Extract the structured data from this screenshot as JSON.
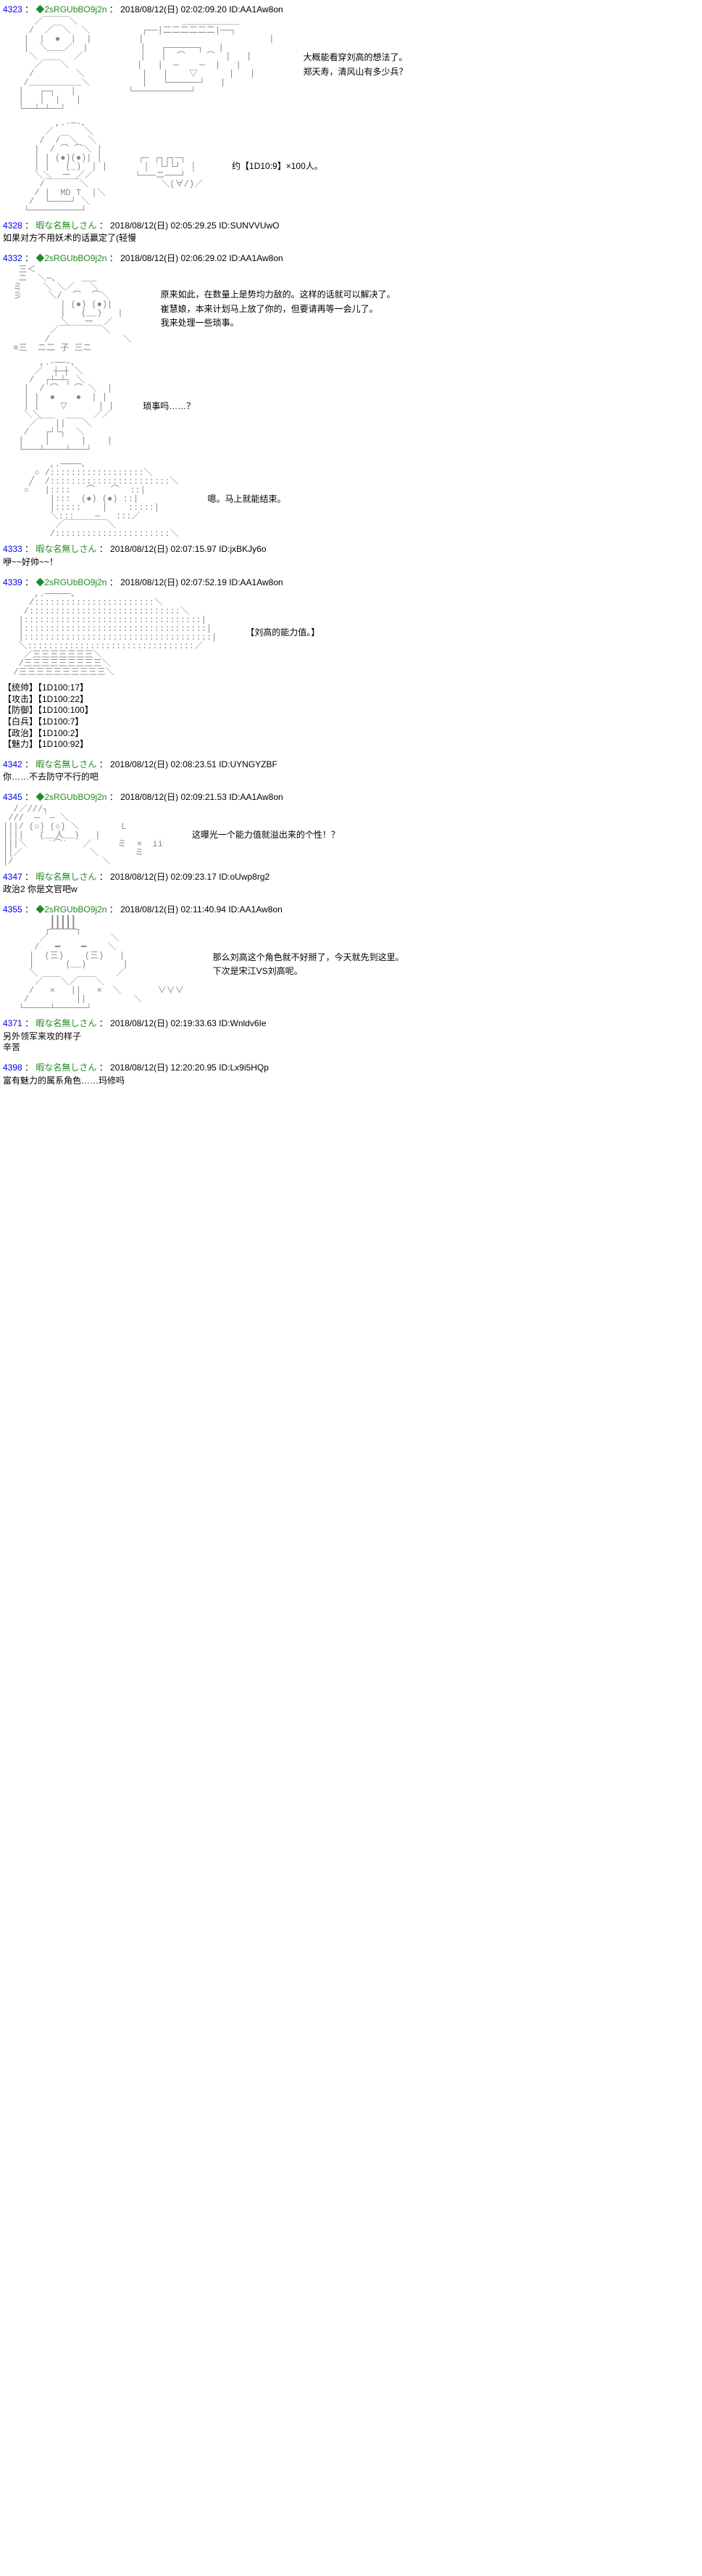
{
  "posts": [
    {
      "num": "4323",
      "trip": "◆2sRGUbBO9j2n",
      "date": "2018/08/12(日) 02:02:09.20",
      "id": "AA1Aw8on",
      "is_trip": true,
      "aa_key": "aa1",
      "side_lines": [
        "大概能看穿刘高的想法了。",
        "郑天寿，清风山有多少兵？"
      ]
    },
    {
      "aa_key": "aa2",
      "side_lines": [
        "约【1D10:9】×100人。"
      ]
    },
    {
      "num": "4328",
      "name": "暇な名無しさん",
      "date": "2018/08/12(日) 02:05:29.25",
      "id": "SUNVVUwO",
      "is_trip": false,
      "below_lines": [
        "如果对方不用妖术的话赢定了(轻慢"
      ]
    },
    {
      "num": "4332",
      "trip": "◆2sRGUbBO9j2n",
      "date": "2018/08/12(日) 02:06:29.02",
      "id": "AA1Aw8on",
      "is_trip": true,
      "aa_key": "aa3",
      "side_lines": [
        "原来如此，在数量上是势均力敌的。这样的话就可以解决了。",
        "崔慧娘，本来计划马上放了你的，但要请再等一会儿了。",
        "我来处理一些琐事。"
      ]
    },
    {
      "aa_key": "aa4",
      "side_lines": [
        "琐事吗……？"
      ]
    },
    {
      "aa_key": "aa5",
      "side_lines": [
        "嗯。马上就能结束。"
      ]
    },
    {
      "num": "4333",
      "name": "暇な名無しさん",
      "date": "2018/08/12(日) 02:07:15.97",
      "id": "jxBKJy6o",
      "is_trip": false,
      "below_lines": [
        "咿~~好帅~~！"
      ]
    },
    {
      "num": "4339",
      "trip": "◆2sRGUbBO9j2n",
      "date": "2018/08/12(日) 02:07:52.19",
      "id": "AA1Aw8on",
      "is_trip": true,
      "aa_key": "aa6",
      "side_lines": [
        "【刘高的能力值。】"
      ],
      "below_lines": [
        "【统帅】【1D100:17】",
        "【攻击】【1D100:22】",
        "【防御】【1D100:100】",
        "【白兵】【1D100:7】",
        "【政治】【1D100:2】",
        "【魅力】【1D100:92】"
      ]
    },
    {
      "num": "4342",
      "name": "暇な名無しさん",
      "date": "2018/08/12(日) 02:08:23.51",
      "id": "UYNGYZBF",
      "is_trip": false,
      "below_lines": [
        "你……不去防守不行的吧"
      ]
    },
    {
      "num": "4345",
      "trip": "◆2sRGUbBO9j2n",
      "date": "2018/08/12(日) 02:09:21.53",
      "id": "AA1Aw8on",
      "is_trip": true,
      "aa_key": "aa7",
      "side_lines": [
        "这曝光一个能力值就溢出来的个性！？"
      ]
    },
    {
      "num": "4347",
      "name": "暇な名無しさん",
      "date": "2018/08/12(日) 02:09:23.17",
      "id": "oUwp8rg2",
      "is_trip": false,
      "below_lines": [
        "政治2 你是文官吧w"
      ]
    },
    {
      "num": "4355",
      "trip": "◆2sRGUbBO9j2n",
      "date": "2018/08/12(日) 02:11:40.94",
      "id": "AA1Aw8on",
      "is_trip": true,
      "aa_key": "aa8",
      "side_lines": [
        "那么刘高这个角色就不好掰了，今天就先到这里。",
        "下次是宋江VS刘高呢。"
      ]
    },
    {
      "num": "4371",
      "name": "暇な名無しさん",
      "date": "2018/08/12(日) 02:19:33.63",
      "id": "Wnldv6Ie",
      "is_trip": false,
      "below_lines": [
        "另外领军来攻的样子",
        "辛苦"
      ]
    },
    {
      "num": "4398",
      "name": "暇な名無しさん",
      "date": "2018/08/12(日) 12:20:20.95",
      "id": "Lx9i5HQp",
      "is_trip": false,
      "below_lines": [
        "富有魅力的属系角色……玛修吗"
      ]
    }
  ],
  "aa": {
    "aa1": "      ／￣￣￣＼                    ___________\n     /  ／￣＼  ＼          ┌──|二二二二二二|──┐\n    |  |  ●  |  |         |                        |\n    |  ＼___／  |          |   ┌──────┐   |\n     ＼       ／           |   |  ⌒    ⌒  |   |\n      ／￣￣＼             |   |  ─    ─  |   |\n     /        ＼           |   |    ▽      |   |\n    /__________＼          |   └──────┘   |\n   |   ┌─┐   |          └───────────┘\n   |   |  |   |\n   └──┴─┴──┘",
    "aa2": "          ,.-─-、\n        ／      ＼\n       /  /￣＼  ＼\n      |  / ⌒ ⌒＼ |\n      | | (●)(●)| |       ┌─ ┌┐┌┐─┐\n      | |   (_)  | |       │  └┘└┘  │\n      ＼＼  ー ／／        └───ニ───┘\n       /￣￣￣￣＼              ＼(∀/)／\n      / |  MD T  |＼\n     /  └────┘ ＼\n    └──────────┘",
    "aa3": "   三＜\n   ニ  ＼─、    ___\n  ミ    ＼ ＼／   ＼\n  彡     ＼/  ⌒  ⌒＼\n           | (●) (●)|\n           |   (__)   |\n           ＼   ー  ／\n         ／￣￣￣￣￣＼\n        /              ＼\n  ≡三  ニ二 子 三ニ",
    "aa4": "       ,.-──-、\n      ／  ┼─┼ ＼\n     /  ┌┴─┴┐ ＼\n    |  / ⌒   ⌒ ＼  |\n    | |  ●    ●  | |\n    | |    ▽      | |\n    ＼＼          ／／\n     ／￣￣||￣￣＼\n    /   ┌┘└┐  ＼\n   |    |      |    |\n   └───┴────┴───┘",
    "aa5": "         ,.────、\n      ○ /::::::::::::::::::＼\n     ╱  /:::::::::::::::::::::::＼\n    ○   |::::   ⌒   ⌒  ::|\n         |:::  (●) (●) ::|\n         |:::::    |    :::::|\n         ＼:::    ─   :::／\n          ／￣￣￣￣￣＼\n         /::::::::::::::::::::::＼",
    "aa6": "      ,.─────、\n     /:::::::::::::::::::::::＼\n    /:::::::::::::::::::::::::::::＼\n   |::::::::::::::::::::::::::::::::::|\n   |:::::::::::::::::::::::::::::::::::|\n   |::::::::::::::::::::::::::::::::::::|\n   ＼::::::::::::::::::::::::::::::::／\n    ／三三三三三三三＼\n   /三三三三三三三三三＼\n  /三三三三三三三三三三＼",
    "aa7": "  /／///┐\n ///  ─  ─ ＼\n|||/ (○) (○) ＼        L\n||||   (__人__)   |\n|||＼    `⌒´   ／     ミ  ×  ii\n||／             ＼       ミ\n|/                 ＼",
    "aa8": "         ┃┃┃┃┃\n        ┌┸┸┸┸┸┐\n       ／            ＼\n      /   ━    ━    ＼\n     |  (三)    (三)   |\n     |      (__)       |\n     ＼               ／\n      ／￣￣＼／￣￣＼\n     /   ×   ||   ×  ＼       ∨∨∨\n    /         ||         ＼\n   └─────┴──────┘"
  }
}
